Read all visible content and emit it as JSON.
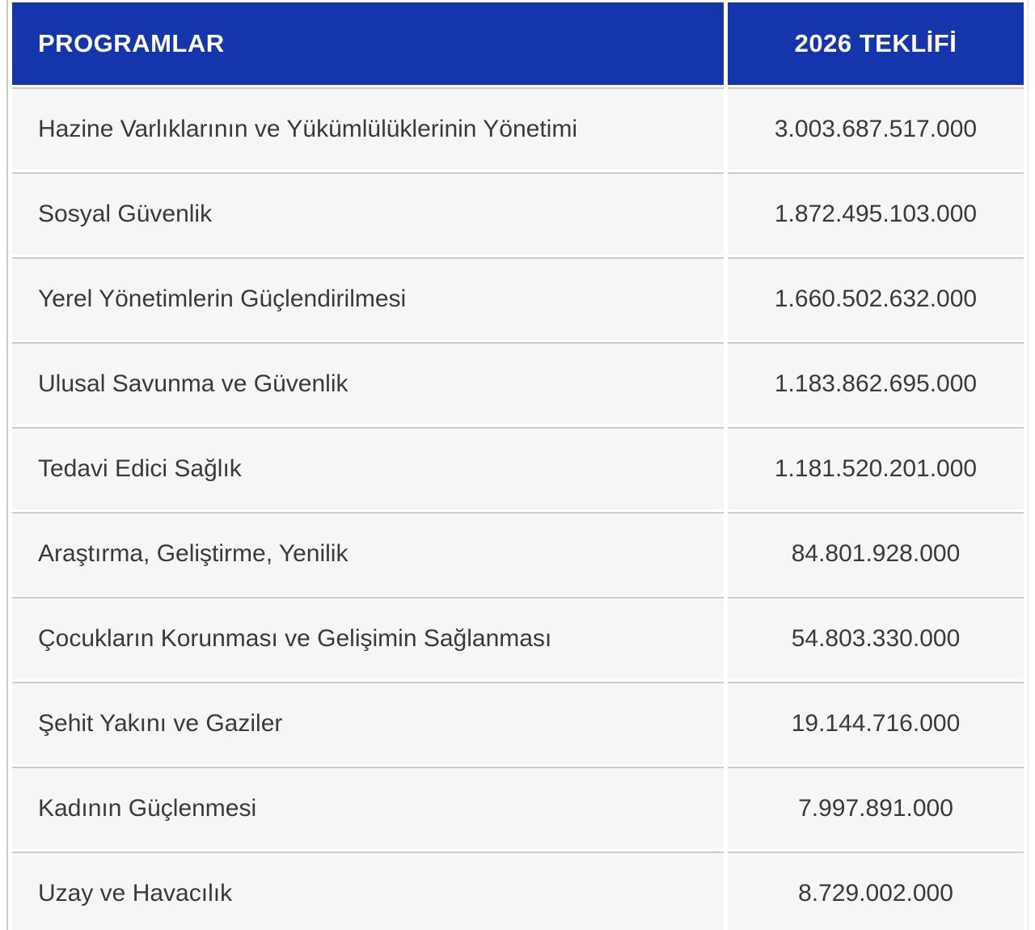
{
  "chart_data": {
    "type": "table",
    "columns": [
      "PROGRAMLAR",
      "2026 TEKLİFİ"
    ],
    "rows": [
      [
        "Hazine Varlıklarının ve Yükümlülüklerinin Yönetimi",
        "3.003.687.517.000"
      ],
      [
        "Sosyal Güvenlik",
        "1.872.495.103.000"
      ],
      [
        "Yerel Yönetimlerin Güçlendirilmesi",
        "1.660.502.632.000"
      ],
      [
        "Ulusal Savunma ve Güvenlik",
        "1.183.862.695.000"
      ],
      [
        "Tedavi Edici Sağlık",
        "1.181.520.201.000"
      ],
      [
        "Araştırma, Geliştirme, Yenilik",
        "84.801.928.000"
      ],
      [
        "Çocukların Korunması ve Gelişimin Sağlanması",
        "54.803.330.000"
      ],
      [
        "Şehit Yakını ve Gaziler",
        "19.144.716.000"
      ],
      [
        "Kadının Güçlenmesi",
        "7.997.891.000"
      ],
      [
        "Uzay ve Havacılık",
        "8.729.002.000"
      ]
    ],
    "values_numeric": [
      3003687517000,
      1872495103000,
      1660502632000,
      1183862695000,
      1181520201000,
      84801928000,
      54803330000,
      19144716000,
      7997891000,
      8729002000
    ],
    "legend_position": "none",
    "grid": "row-dividers"
  },
  "colors": {
    "header_bg": "#1535ac",
    "header_text": "#ffffff",
    "row_bg": "#f6f6f6",
    "row_text": "#3a3a3a",
    "divider": "#cbcbcb"
  }
}
